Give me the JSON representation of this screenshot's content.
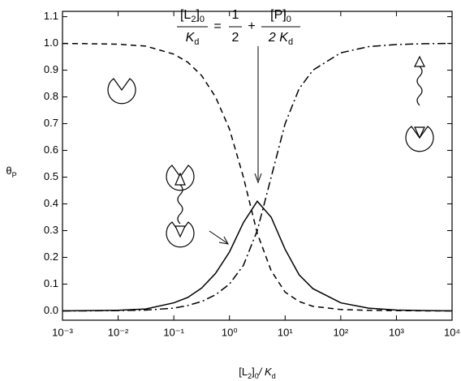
{
  "chart_data": {
    "type": "line",
    "x_label": [
      "[L",
      "2",
      "]",
      "0",
      "/ K",
      "d"
    ],
    "y_label": [
      "θ",
      "P"
    ],
    "annotation": {
      "lhs_numerator": [
        "[L",
        "2",
        "]",
        "0"
      ],
      "lhs_denominator": [
        "K",
        "d"
      ],
      "equals": "=",
      "half_numerator": "1",
      "half_denominator": "2",
      "plus": "+",
      "rhs_numerator": [
        "[P]",
        "0"
      ],
      "rhs_denominator": [
        "2 K",
        "d"
      ]
    },
    "x": [
      0.001,
      0.00316,
      0.01,
      0.0316,
      0.1,
      0.178,
      0.316,
      0.562,
      1,
      1.78,
      3.16,
      5.62,
      10,
      17.8,
      31.6,
      100,
      316,
      1000,
      3162,
      10000
    ],
    "series": [
      {
        "color": "#000000",
        "dash": "7,5",
        "values": [
          1.0,
          0.999,
          0.997,
          0.99,
          0.96,
          0.93,
          0.88,
          0.8,
          0.68,
          0.5,
          0.29,
          0.15,
          0.07,
          0.035,
          0.017,
          0.005,
          0.002,
          0.001,
          0,
          0
        ]
      },
      {
        "color": "#000000",
        "dash": "10,4,2,4",
        "values": [
          0,
          0,
          0.001,
          0.003,
          0.01,
          0.02,
          0.035,
          0.06,
          0.1,
          0.17,
          0.3,
          0.5,
          0.7,
          0.83,
          0.9,
          0.965,
          0.988,
          0.996,
          0.999,
          1.0
        ]
      },
      {
        "color": "#000000",
        "dash": "none",
        "values": [
          0,
          0.001,
          0.002,
          0.007,
          0.03,
          0.05,
          0.085,
          0.14,
          0.22,
          0.33,
          0.41,
          0.35,
          0.23,
          0.135,
          0.083,
          0.03,
          0.01,
          0.003,
          0.001,
          0
        ]
      }
    ],
    "log_x": true,
    "xlim": [
      0.001,
      10000
    ],
    "xticks": [
      {
        "value": 0.001,
        "label": "10⁻³"
      },
      {
        "value": 0.01,
        "label": "10⁻²"
      },
      {
        "value": 0.1,
        "label": "10⁻¹"
      },
      {
        "value": 1,
        "label": "10⁰"
      },
      {
        "value": 10,
        "label": "10¹"
      },
      {
        "value": 100,
        "label": "10²"
      },
      {
        "value": 1000,
        "label": "10³"
      },
      {
        "value": 10000,
        "label": "10⁴"
      }
    ],
    "ylim": [
      -0.035,
      1.12
    ],
    "yticks": [
      {
        "value": 0,
        "label": "0.0"
      },
      0.1,
      0.2,
      0.3,
      0.4,
      0.5,
      0.6,
      0.7,
      0.8,
      0.9,
      {
        "value": 1,
        "label": "1.0"
      },
      1.1
    ]
  }
}
